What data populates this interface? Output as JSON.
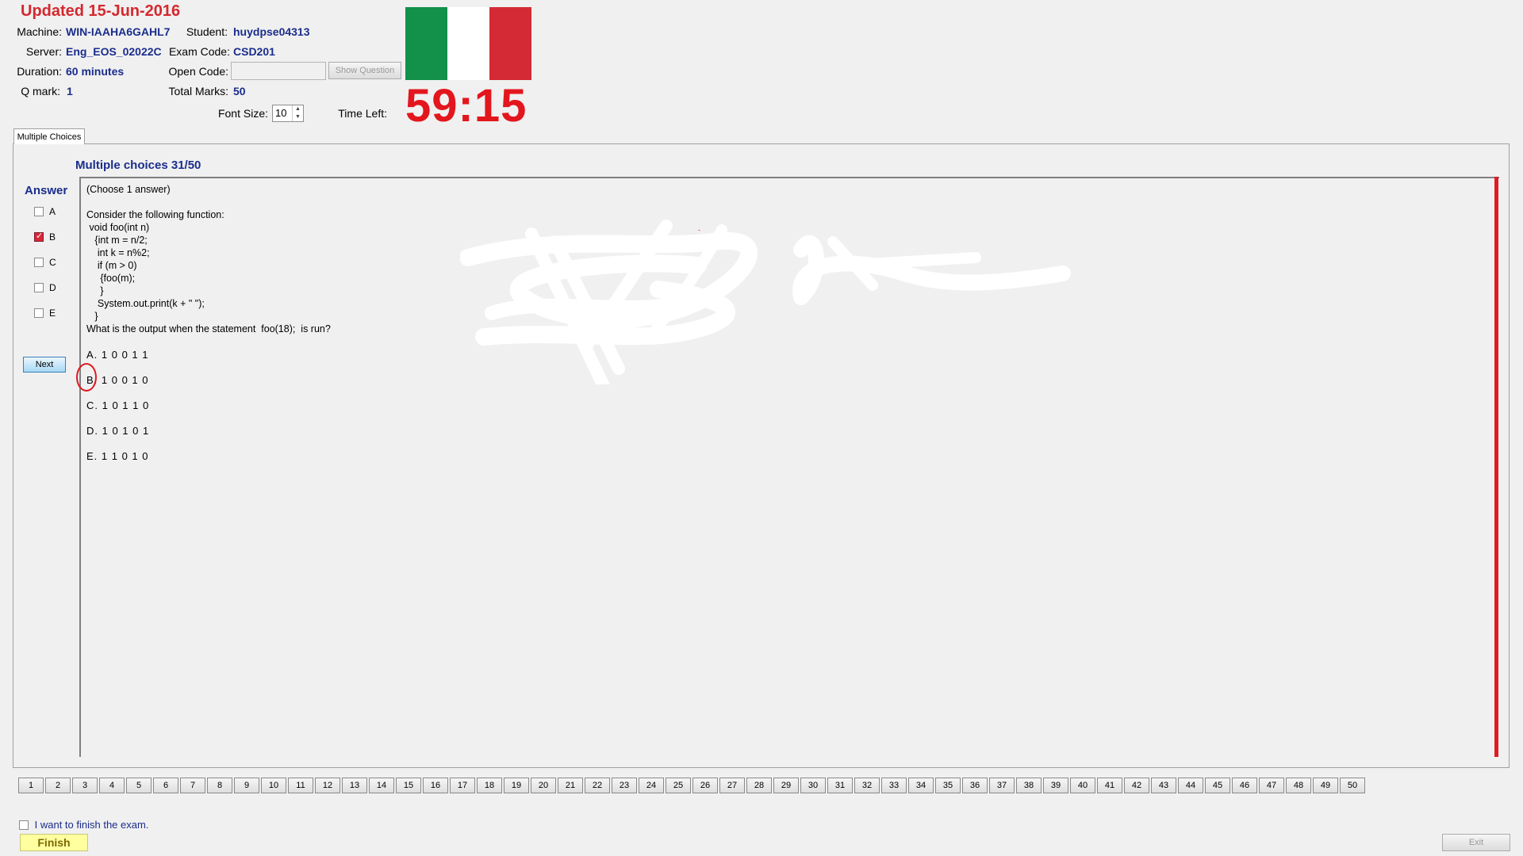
{
  "header": {
    "updated": "Updated 15-Jun-2016",
    "machine_label": "Machine:",
    "machine_value": "WIN-IAAHA6GAHL7",
    "student_label": "Student:",
    "student_value": "huydpse04313",
    "server_label": "Server:",
    "server_value": "Eng_EOS_02022C",
    "exam_code_label": "Exam Code:",
    "exam_code_value": "CSD201",
    "duration_label": "Duration:",
    "duration_value": "60 minutes",
    "open_code_label": "Open Code:",
    "open_code_value": "",
    "show_question_label": "Show Question",
    "qmark_label": "Q mark:",
    "qmark_value": "1",
    "total_marks_label": "Total Marks:",
    "total_marks_value": "50",
    "font_size_label": "Font Size:",
    "font_size_value": "10",
    "time_left_label": "Time Left:",
    "time_left_value": "59:15"
  },
  "flag": {
    "colors": [
      "#13904a",
      "#ffffff",
      "#d42a35"
    ]
  },
  "tab": {
    "label": "Multiple Choices"
  },
  "question": {
    "title": "Multiple choices 31/50",
    "text": "(Choose 1 answer)\n\nConsider the following function:\n void foo(int n)\n   {int m = n/2;\n    int k = n%2;\n    if (m > 0)\n     {foo(m);\n     }\n    System.out.print(k + \" \");\n   }\nWhat is the output when the statement  foo(18);  is run?",
    "options": [
      "A. 1 0 0 1 1",
      "B. 1 0 0 1 0",
      "C. 1 0 1 1 0",
      "D. 1 0 1 0 1",
      "E. 1 1 0 1 0"
    ]
  },
  "answer": {
    "title": "Answer",
    "choices": [
      {
        "letter": "A",
        "checked": false
      },
      {
        "letter": "B",
        "checked": true
      },
      {
        "letter": "C",
        "checked": false
      },
      {
        "letter": "D",
        "checked": false
      },
      {
        "letter": "E",
        "checked": false
      }
    ],
    "next_label": "Next"
  },
  "navigation": {
    "questions": [
      "1",
      "2",
      "3",
      "4",
      "5",
      "6",
      "7",
      "8",
      "9",
      "10",
      "11",
      "12",
      "13",
      "14",
      "15",
      "16",
      "17",
      "18",
      "19",
      "20",
      "21",
      "22",
      "23",
      "24",
      "25",
      "26",
      "27",
      "28",
      "29",
      "30",
      "31",
      "32",
      "33",
      "34",
      "35",
      "36",
      "37",
      "38",
      "39",
      "40",
      "41",
      "42",
      "43",
      "44",
      "45",
      "46",
      "47",
      "48",
      "49",
      "50"
    ]
  },
  "footer": {
    "finish_check_label": "I want to finish the exam.",
    "finish_label": "Finish",
    "exit_label": "Exit"
  }
}
